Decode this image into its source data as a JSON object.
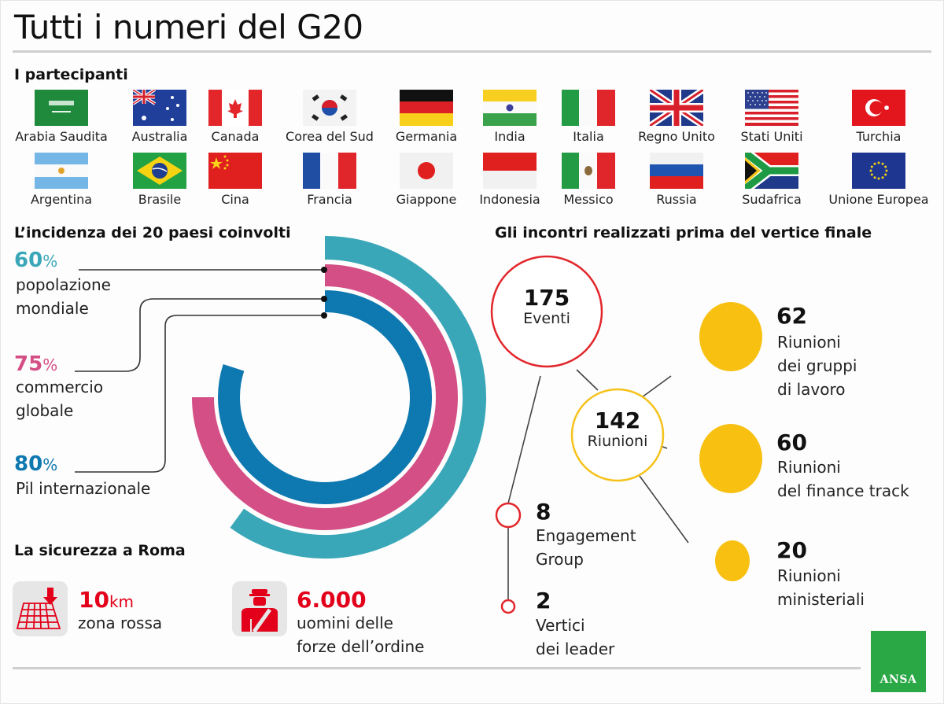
{
  "title": "Tutti i numeri del G20",
  "participants": {
    "heading": "I partecipanti",
    "row1": [
      "Arabia Saudita",
      "Australia",
      "Canada",
      "Corea del Sud",
      "Germania",
      "India",
      "Italia",
      "Regno Unito",
      "Stati Uniti",
      "Turchia"
    ],
    "row2": [
      "Argentina",
      "Brasile",
      "Cina",
      "Francia",
      "Giappone",
      "Indonesia",
      "Messico",
      "Russia",
      "Sudafrica",
      "Unione Europea"
    ]
  },
  "incidence": {
    "heading": "L’incidenza dei 20 paesi coinvolti",
    "items": [
      {
        "value": "60",
        "unit": "%",
        "line1": "popolazione",
        "line2": "mondiale",
        "color": "#3aa7b8"
      },
      {
        "value": "75",
        "unit": "%",
        "line1": "commercio",
        "line2": "globale",
        "color": "#d44f85"
      },
      {
        "value": "80",
        "unit": "%",
        "line1": "Pil internazionale",
        "line2": "",
        "color": "#0e78b0"
      }
    ]
  },
  "chart_data": {
    "type": "radial-bar",
    "title": "L’incidenza dei 20 paesi coinvolti",
    "categories": [
      "popolazione mondiale",
      "commercio globale",
      "Pil internazionale"
    ],
    "values": [
      60,
      75,
      80
    ],
    "unit": "%",
    "colors": [
      "#3aa7b8",
      "#d44f85",
      "#0e78b0"
    ]
  },
  "meetings": {
    "heading": "Gli incontri realizzati prima del vertice finale",
    "events": {
      "value": "175",
      "label": "Eventi",
      "color": "#e2262b"
    },
    "riunioni": {
      "value": "142",
      "label": "Riunioni",
      "color": "#f5c21a"
    },
    "working_groups": {
      "value": "62",
      "line1": "Riunioni",
      "line2": "dei gruppi",
      "line3": "di lavoro"
    },
    "finance_track": {
      "value": "60",
      "line1": "Riunioni",
      "line2": "del finance track"
    },
    "ministerial": {
      "value": "20",
      "line1": "Riunioni",
      "line2": "ministeriali"
    },
    "engagement": {
      "value": "8",
      "line1": "Engagement",
      "line2": "Group"
    },
    "leaders": {
      "value": "2",
      "line1": "Vertici",
      "line2": "dei leader"
    }
  },
  "security": {
    "heading": "La sicurezza a Roma",
    "zone": {
      "value": "10",
      "unit": "km",
      "label": "zona rossa",
      "icon": "red-zone-map-icon"
    },
    "police": {
      "value": "6.000",
      "line1": "uomini delle",
      "line2": "forze dell’ordine",
      "icon": "police-officer-icon"
    },
    "accent_color": "#e2001a"
  },
  "logo": {
    "text": "ANSA",
    "color": "#2aa845"
  }
}
